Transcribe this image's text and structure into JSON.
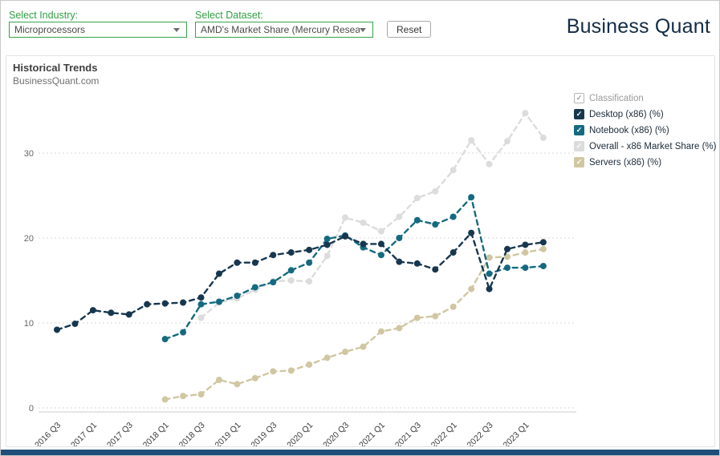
{
  "controls": {
    "industry_label": "Select Industry:",
    "industry_value": "Microprocessors",
    "dataset_label": "Select Dataset:",
    "dataset_value": "AMD's Market Share (Mercury Resear...",
    "reset_label": "Reset"
  },
  "logo": {
    "text": "Business Quant"
  },
  "chart_header": {
    "title": "Historical Trends",
    "subtitle": "BusinessQuant.com"
  },
  "legend": {
    "header_label": "Classification"
  },
  "colors": {
    "accent_green": "#2f9e44",
    "desktop_navy": "#17374e",
    "notebook_teal": "#156a80",
    "overall_gray": "#dcdcdc",
    "servers_tan": "#d0c7a2",
    "logo_navy": "#132c47",
    "footer_navy": "#1f4e79"
  },
  "chart_data": {
    "type": "line",
    "title": "Historical Trends",
    "subtitle": "BusinessQuant.com",
    "xlabel": "",
    "ylabel": "",
    "ylim": [
      0,
      35
    ],
    "yticks": [
      0,
      10,
      20,
      30
    ],
    "grid": "horizontal-dashed",
    "legend_position": "right",
    "marker": "circle-dashed-line",
    "quarters": [
      "2016 Q3",
      "2016 Q4",
      "2017 Q1",
      "2017 Q2",
      "2017 Q3",
      "2017 Q4",
      "2018 Q1",
      "2018 Q2",
      "2018 Q3",
      "2018 Q4",
      "2019 Q1",
      "2019 Q2",
      "2019 Q3",
      "2019 Q4",
      "2020 Q1",
      "2020 Q2",
      "2020 Q3",
      "2020 Q4",
      "2021 Q1",
      "2021 Q2",
      "2021 Q3",
      "2021 Q4",
      "2022 Q1",
      "2022 Q2",
      "2022 Q3",
      "2022 Q4",
      "2023 Q1",
      "2023 Q2"
    ],
    "x_tick_labels": [
      "2016 Q3",
      "2017 Q1",
      "2017 Q3",
      "2018 Q1",
      "2018 Q3",
      "2019 Q1",
      "2019 Q3",
      "2020 Q1",
      "2020 Q3",
      "2021 Q1",
      "2021 Q3",
      "2022 Q1",
      "2022 Q3",
      "2023 Q1"
    ],
    "series": [
      {
        "name": "Desktop (x86) (%)",
        "color": "#17374e",
        "start_quarter": "2016 Q3",
        "start_index": 0,
        "values": [
          9.2,
          9.9,
          11.5,
          11.2,
          11.0,
          12.2,
          12.3,
          12.4,
          13.0,
          15.8,
          17.1,
          17.1,
          18.0,
          18.3,
          18.6,
          19.2,
          20.2,
          19.3,
          19.3,
          17.2,
          17.0,
          16.3,
          18.3,
          20.6,
          14.0,
          18.7,
          19.2,
          19.5
        ]
      },
      {
        "name": "Notebook (x86) (%)",
        "color": "#156a80",
        "start_quarter": "2018 Q1",
        "start_index": 6,
        "values": [
          8.1,
          8.9,
          12.2,
          12.5,
          13.2,
          14.2,
          14.8,
          16.2,
          17.1,
          19.9,
          20.3,
          18.9,
          18.0,
          20.0,
          22.1,
          21.6,
          22.5,
          24.8,
          15.8,
          16.5,
          16.5,
          16.7
        ]
      },
      {
        "name": "Overall - x86 Market Share (%)",
        "color": "#dcdcdc",
        "start_quarter": "2018 Q3",
        "start_index": 8,
        "values": [
          10.6,
          12.4,
          12.9,
          13.9,
          14.9,
          15.0,
          14.9,
          17.9,
          22.4,
          21.8,
          20.8,
          22.5,
          24.7,
          25.5,
          28.0,
          31.5,
          28.7,
          31.4,
          34.7,
          31.8
        ]
      },
      {
        "name": "Servers (x86) (%)",
        "color": "#d0c7a2",
        "start_quarter": "2018 Q1",
        "start_index": 6,
        "values": [
          1.0,
          1.4,
          1.6,
          3.3,
          2.8,
          3.5,
          4.3,
          4.4,
          5.1,
          5.9,
          6.6,
          7.2,
          9.0,
          9.4,
          10.6,
          10.8,
          11.9,
          14.0,
          17.7,
          17.8,
          18.3,
          18.7
        ]
      }
    ]
  }
}
